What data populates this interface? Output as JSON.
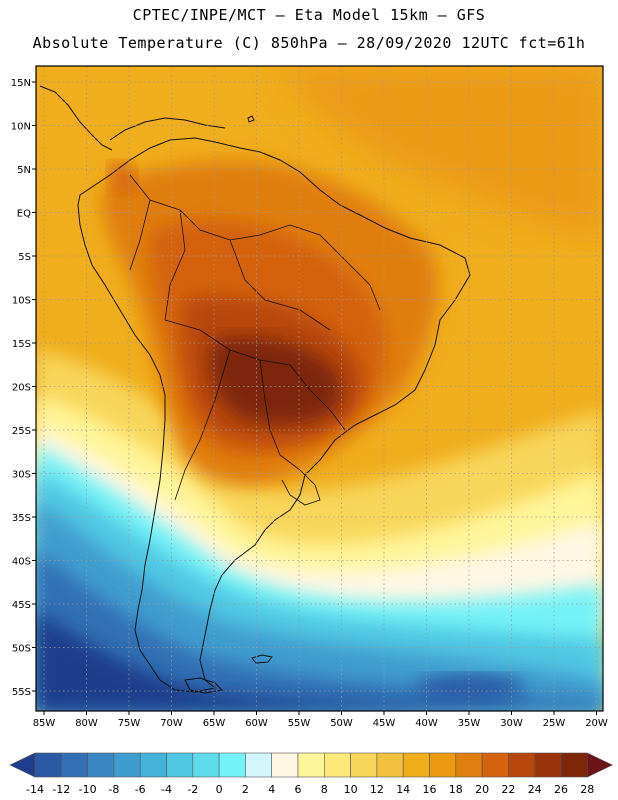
{
  "header": {
    "title_line1": "CPTEC/INPE/MCT —  Eta Model 15km — GFS",
    "title_line2": "Absolute Temperature (C) 850hPa — 28/09/2020 12UTC fct=61h"
  },
  "axes": {
    "lat_labels": [
      "15N",
      "10N",
      "5N",
      "EQ",
      "5S",
      "10S",
      "15S",
      "20S",
      "25S",
      "30S",
      "35S",
      "40S",
      "45S",
      "50S",
      "55S"
    ],
    "lon_labels": [
      "85W",
      "80W",
      "75W",
      "70W",
      "65W",
      "60W",
      "55W",
      "50W",
      "45W",
      "40W",
      "35W",
      "30W",
      "25W",
      "20W"
    ]
  },
  "colorbar": {
    "labels": [
      "-14",
      "-12",
      "-10",
      "-8",
      "-6",
      "-4",
      "-2",
      "0",
      "2",
      "4",
      "6",
      "8",
      "10",
      "12",
      "14",
      "16",
      "18",
      "20",
      "22",
      "24",
      "26",
      "28"
    ],
    "colors": [
      "#1f3d8c",
      "#2a5aa6",
      "#336fb5",
      "#3a86c3",
      "#3f9ccf",
      "#45b2da",
      "#4fc7e3",
      "#5fdcec",
      "#74f2f7",
      "#d2f6fb",
      "#fff7e4",
      "#fff59a",
      "#fde87a",
      "#f8d65a",
      "#f2c23e",
      "#f0ad1c",
      "#eb9a12",
      "#e07e10",
      "#d4620e",
      "#b7470c",
      "#9a330a",
      "#7e2608",
      "#6a1418"
    ]
  },
  "theme": {
    "ocean_warm": "#f0ad1c",
    "coast_color": "#111111"
  }
}
